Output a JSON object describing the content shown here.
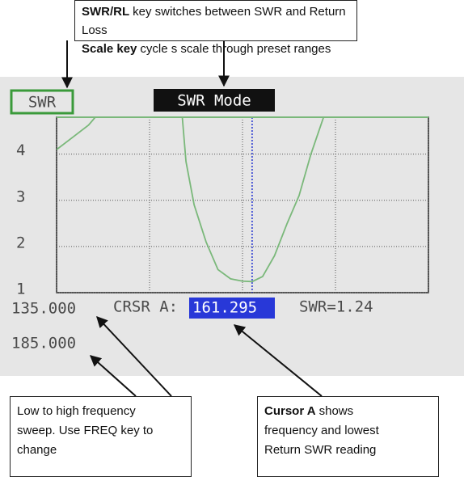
{
  "callouts": {
    "top": [
      {
        "bold": "SWR/RL",
        "text": "key switches between SWR and Return Loss"
      },
      {
        "bold": "Scale key",
        "text": "cycle s scale through preset ranges"
      }
    ],
    "bottom_left": {
      "lines": [
        "Low to high frequency",
        "sweep. Use FREQ key to",
        "change"
      ]
    },
    "bottom_right": {
      "bold": "Cursor A",
      "lines": [
        "shows",
        "frequency and lowest",
        "Return SWR reading"
      ]
    }
  },
  "screen": {
    "mode_label": "SWR",
    "title": "SWR Mode",
    "start_freq": "135.000",
    "stop_freq": "185.000",
    "cursor_label": "CRSR A:",
    "cursor_freq": "161.295",
    "cursor_reading": "SWR=1.24"
  },
  "chart_data": {
    "type": "line",
    "color": "#7ab87a",
    "cursor_color": "#2030d0",
    "x": [
      135,
      137.2,
      139.3,
      140.2,
      151.8,
      152.4,
      153.5,
      155.1,
      156.7,
      158.4,
      160.0,
      161.3,
      162.7,
      164.3,
      166.0,
      167.6,
      169.2,
      170.9
    ],
    "values": [
      4.1,
      4.37,
      4.63,
      4.8,
      5.0,
      3.84,
      2.9,
      2.1,
      1.5,
      1.3,
      1.25,
      1.24,
      1.35,
      1.8,
      2.5,
      3.1,
      4.0,
      4.8
    ],
    "cursor_x": 161.295,
    "xlim": [
      135,
      185
    ],
    "xticks": [
      135,
      147.5,
      160,
      172.5,
      185
    ],
    "ylim": [
      1,
      4.8
    ],
    "yticks": [
      1,
      2,
      3,
      4
    ],
    "grid": true
  }
}
